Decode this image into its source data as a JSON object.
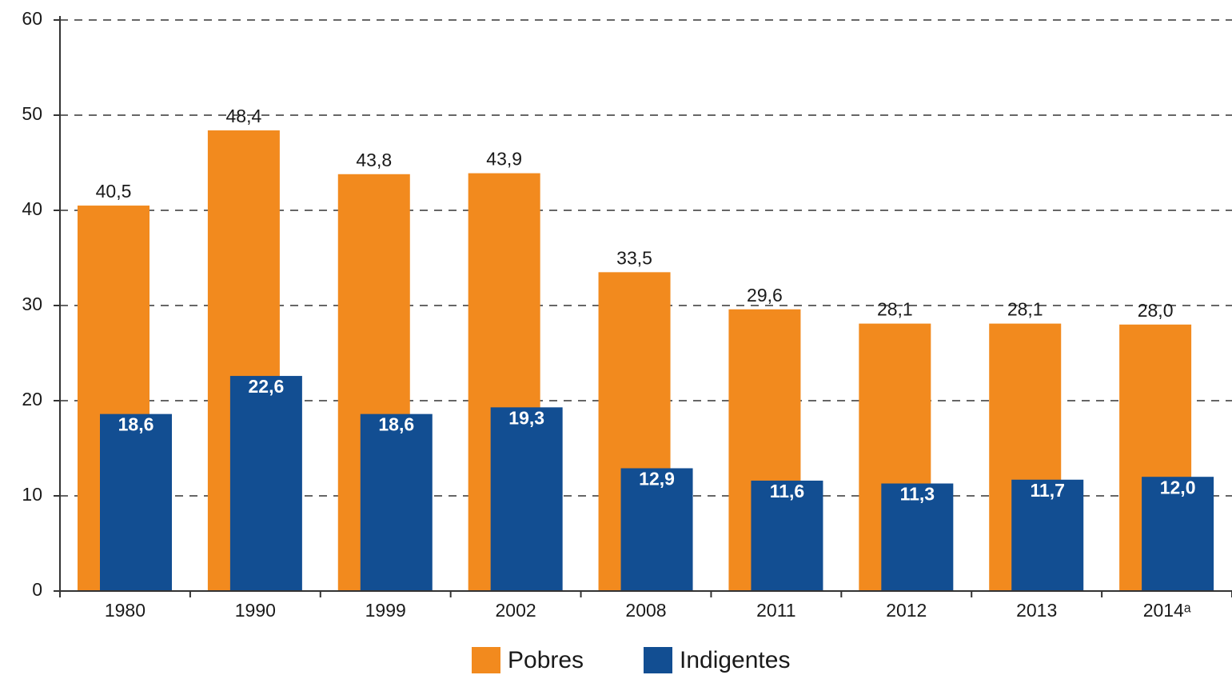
{
  "chart_data": {
    "type": "bar",
    "categories": [
      "1980",
      "1990",
      "1999",
      "2002",
      "2008",
      "2011",
      "2012",
      "2013",
      "2014ᵃ"
    ],
    "series": [
      {
        "name": "Pobres",
        "color": "#f28a1e",
        "values": [
          40.5,
          48.4,
          43.8,
          43.9,
          33.5,
          29.6,
          28.1,
          28.1,
          28.0
        ],
        "value_labels": [
          "40,5",
          "48,4",
          "43,8",
          "43,9",
          "33,5",
          "29,6",
          "28,1",
          "28,1",
          "28,0"
        ]
      },
      {
        "name": "Indigentes",
        "color": "#124e92",
        "values": [
          18.6,
          22.6,
          18.6,
          19.3,
          12.9,
          11.6,
          11.3,
          11.7,
          12.0
        ],
        "value_labels": [
          "18,6",
          "22,6",
          "18,6",
          "19,3",
          "12,9",
          "11,6",
          "11,3",
          "11,7",
          "12,0"
        ]
      }
    ],
    "ylim": [
      0,
      60
    ],
    "yticks": [
      0,
      10,
      20,
      30,
      40,
      50,
      60
    ],
    "grid": true,
    "legend": "bottom"
  }
}
